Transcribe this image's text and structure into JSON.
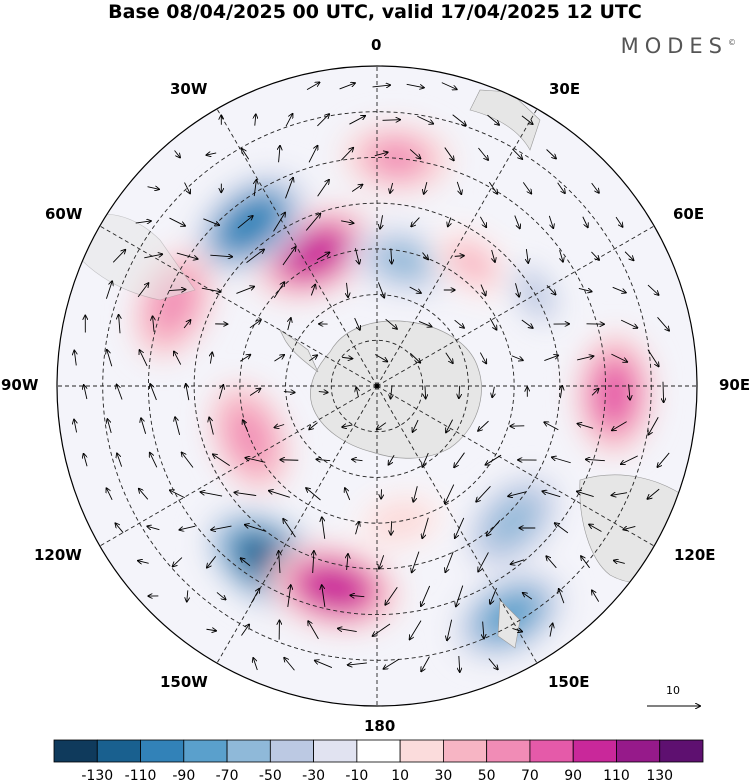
{
  "title": "Base 08/04/2025 00 UTC, valid 17/04/2025 12 UTC",
  "brand": "MODES",
  "brand_mark": "©",
  "longitude_labels": {
    "lon_0": "0",
    "lon_30e": "30E",
    "lon_60e": "60E",
    "lon_90e": "90E",
    "lon_120e": "120E",
    "lon_150e": "150E",
    "lon_180": "180",
    "lon_150w": "150W",
    "lon_120w": "120W",
    "lon_90w": "90W",
    "lon_60w": "60W",
    "lon_30w": "30W"
  },
  "reference_vector": {
    "label": "10"
  },
  "colorbar": {
    "ticks": [
      "-130",
      "-110",
      "-90",
      "-70",
      "-50",
      "-30",
      "-10",
      "10",
      "30",
      "50",
      "70",
      "90",
      "110",
      "130"
    ],
    "colors": [
      "#0f3a5c",
      "#19608f",
      "#3282b8",
      "#5aa0cc",
      "#8fb9d9",
      "#bcc9e3",
      "#e1e3f1",
      "#ffffff",
      "#fbdcdc",
      "#f7b5c4",
      "#f18cb6",
      "#e55aa9",
      "#c9289a",
      "#961a8a",
      "#5e1070"
    ]
  },
  "anomaly_cells": [
    {
      "lon": 5,
      "lat": -40,
      "value": 55
    },
    {
      "lon": -25,
      "lat": -58,
      "value": 95
    },
    {
      "lon": -38,
      "lat": -45,
      "value": -95
    },
    {
      "lon": 12,
      "lat": -62,
      "value": -55
    },
    {
      "lon": 38,
      "lat": -56,
      "value": 35
    },
    {
      "lon": 60,
      "lat": -50,
      "value": -30
    },
    {
      "lon": -68,
      "lat": -42,
      "value": 65
    },
    {
      "lon": -112,
      "lat": -60,
      "value": 65
    },
    {
      "lon": 92,
      "lat": -38,
      "value": 80
    },
    {
      "lon": 135,
      "lat": -48,
      "value": -60
    },
    {
      "lon": 150,
      "lat": -32,
      "value": -75
    },
    {
      "lon": -148,
      "lat": -45,
      "value": -110
    },
    {
      "lon": -168,
      "lat": -45,
      "value": 100
    },
    {
      "lon": 170,
      "lat": -60,
      "value": 25
    }
  ]
}
